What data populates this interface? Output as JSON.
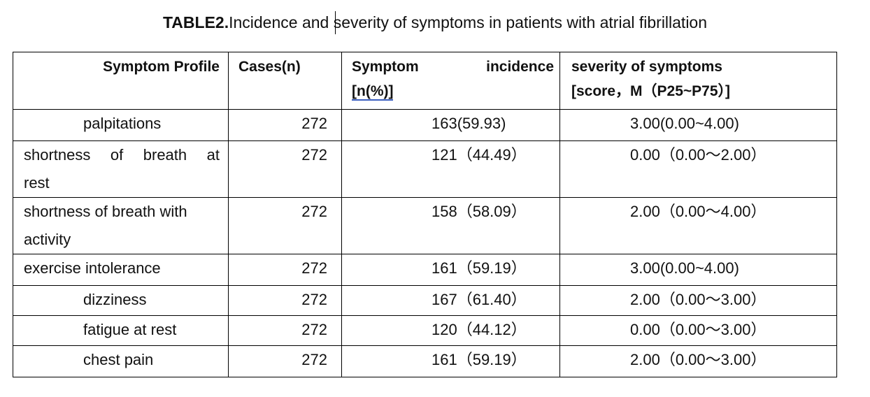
{
  "title": {
    "label": "TABLE2.",
    "text": "Incidence and severity of symptoms in patients with atrial fibrillation"
  },
  "table": {
    "headers": {
      "profile": "Symptom Profile",
      "cases": "Cases(n)",
      "incidence_word1": "Symptom",
      "incidence_word2": "incidence",
      "incidence_unit": "[n(%)]",
      "severity_line1": "severity of symptoms",
      "severity_line2": "[score，M（P25~P75）]"
    },
    "rows": [
      {
        "profile": "palpitations",
        "cases": "272",
        "incidence": "163(59.93)",
        "severity": "3.00(0.00~4.00)"
      },
      {
        "profile": "shortness of breath at",
        "profile_cont": "rest",
        "cases": "272",
        "incidence": "121（44.49）",
        "severity": "0.00（0.00～2.00）"
      },
      {
        "profile": "shortness of breath with",
        "profile_cont": "activity",
        "cases": "272",
        "incidence": "158（58.09）",
        "severity": "2.00（0.00～4.00）"
      },
      {
        "profile": "exercise intolerance",
        "cases": "272",
        "incidence": "161（59.19）",
        "severity": "3.00(0.00~4.00)"
      },
      {
        "profile": "dizziness",
        "cases": "272",
        "incidence": "167（61.40）",
        "severity": "2.00（0.00～3.00）"
      },
      {
        "profile": "fatigue at rest",
        "cases": "272",
        "incidence": "120（44.12）",
        "severity": "0.00（0.00～3.00）"
      },
      {
        "profile": "chest pain",
        "cases": "272",
        "incidence": "161（59.19）",
        "severity": "2.00（0.00～3.00）"
      }
    ]
  }
}
